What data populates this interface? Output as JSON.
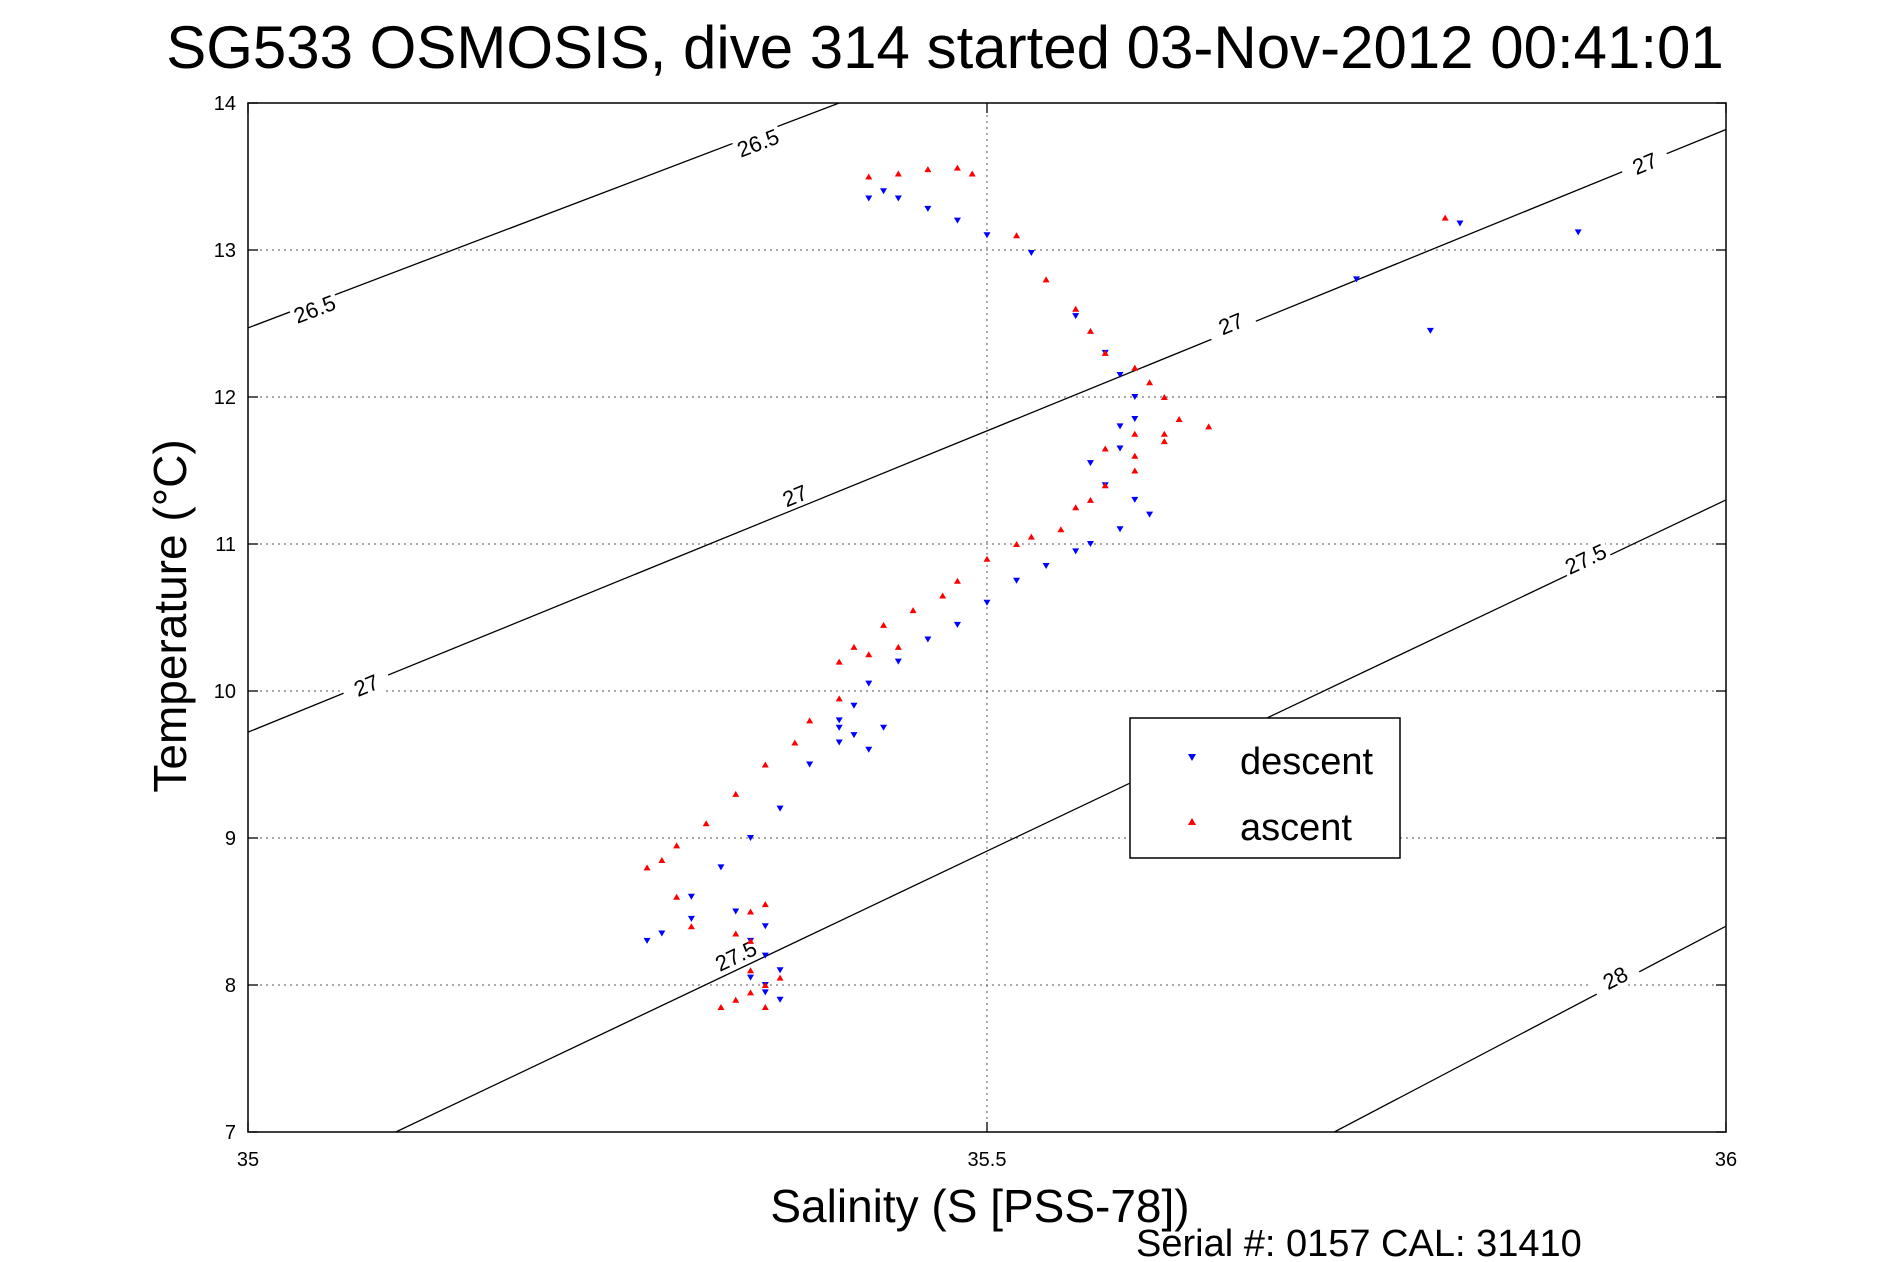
{
  "chart_data": {
    "type": "scatter",
    "title": "SG533 OSMOSIS, dive 314 started 03-Nov-2012 00:41:01",
    "xlabel": "Salinity (S [PSS-78])",
    "ylabel": "Temperature (°C)",
    "footer": "Serial #: 0157  CAL: 31410",
    "xlim": [
      35,
      36
    ],
    "ylim": [
      7,
      14
    ],
    "xticks": [
      35,
      35.5,
      36
    ],
    "xtick_labels": [
      "35",
      "35.5",
      "36"
    ],
    "yticks": [
      7,
      8,
      9,
      10,
      11,
      12,
      13,
      14
    ],
    "ytick_labels": [
      "7",
      "8",
      "9",
      "10",
      "11",
      "12",
      "13",
      "14"
    ],
    "grid": true,
    "legend_position": "center-right",
    "contours": [
      {
        "label": "26.5",
        "points": [
          [
            35,
            12.47
          ],
          [
            35.4,
            14.0
          ]
        ],
        "labels_at": [
          [
            35.045,
            12.6,
            24
          ],
          [
            35.345,
            13.73,
            24
          ]
        ]
      },
      {
        "label": "27",
        "points": [
          [
            35,
            9.72
          ],
          [
            36,
            13.82
          ]
        ],
        "labels_at": [
          [
            35.08,
            10.04,
            24
          ],
          [
            35.37,
            11.33,
            24
          ],
          [
            35.665,
            12.5,
            24
          ],
          [
            35.945,
            13.59,
            24
          ]
        ]
      },
      {
        "label": "27.5",
        "points": [
          [
            35.1,
            7.0
          ],
          [
            36,
            11.3
          ]
        ],
        "labels_at": [
          [
            35.33,
            8.2,
            24
          ],
          [
            35.905,
            10.9,
            24
          ]
        ]
      },
      {
        "label": "28",
        "points": [
          [
            35.735,
            7.0
          ],
          [
            36,
            8.4
          ]
        ],
        "labels_at": [
          [
            35.925,
            8.05,
            24
          ]
        ]
      }
    ],
    "series": [
      {
        "name": "descent",
        "color": "#0000ff",
        "marker": "triangle-down",
        "x": [
          35.42,
          35.43,
          35.44,
          35.46,
          35.48,
          35.5,
          35.53,
          35.56,
          35.58,
          35.59,
          35.6,
          35.6,
          35.59,
          35.59,
          35.57,
          35.58,
          35.6,
          35.61,
          35.59,
          35.57,
          35.56,
          35.54,
          35.52,
          35.5,
          35.48,
          35.46,
          35.44,
          35.42,
          35.41,
          35.4,
          35.4,
          35.41,
          35.42,
          35.43,
          35.4,
          35.38,
          35.36,
          35.34,
          35.32,
          35.3,
          35.28,
          35.27,
          35.3,
          35.33,
          35.35,
          35.35,
          35.34,
          35.35,
          35.36,
          35.34,
          35.35,
          35.36,
          35.82,
          35.9,
          35.75,
          35.8
        ],
        "y": [
          13.35,
          13.4,
          13.35,
          13.28,
          13.2,
          13.1,
          12.98,
          12.55,
          12.3,
          12.15,
          12.0,
          11.85,
          11.8,
          11.65,
          11.55,
          11.4,
          11.3,
          11.2,
          11.1,
          11.0,
          10.95,
          10.85,
          10.75,
          10.6,
          10.45,
          10.35,
          10.2,
          10.05,
          9.9,
          9.75,
          9.65,
          9.7,
          9.6,
          9.75,
          9.8,
          9.5,
          9.2,
          9.0,
          8.8,
          8.6,
          8.35,
          8.3,
          8.45,
          8.5,
          8.4,
          8.2,
          8.05,
          7.95,
          7.9,
          8.3,
          8.0,
          8.1,
          13.18,
          13.12,
          12.8,
          12.45
        ]
      },
      {
        "name": "ascent",
        "color": "#ff0000",
        "marker": "triangle-up",
        "x": [
          35.42,
          35.44,
          35.46,
          35.48,
          35.49,
          35.52,
          35.54,
          35.56,
          35.57,
          35.58,
          35.6,
          35.61,
          35.62,
          35.63,
          35.6,
          35.58,
          35.6,
          35.62,
          35.65,
          35.62,
          35.6,
          35.58,
          35.57,
          35.56,
          35.55,
          35.53,
          35.52,
          35.5,
          35.48,
          35.47,
          35.45,
          35.43,
          35.41,
          35.4,
          35.42,
          35.44,
          35.4,
          35.38,
          35.37,
          35.35,
          35.33,
          35.31,
          35.29,
          35.28,
          35.27,
          35.29,
          35.3,
          35.33,
          35.34,
          35.35,
          35.34,
          35.34,
          35.35,
          35.35,
          35.32,
          35.33,
          35.34,
          35.36,
          35.81
        ],
        "y": [
          13.5,
          13.52,
          13.55,
          13.56,
          13.52,
          13.1,
          12.8,
          12.6,
          12.45,
          12.3,
          12.2,
          12.1,
          12.0,
          11.85,
          11.75,
          11.65,
          11.6,
          11.75,
          11.8,
          11.7,
          11.5,
          11.4,
          11.3,
          11.25,
          11.1,
          11.05,
          11.0,
          10.9,
          10.75,
          10.65,
          10.55,
          10.45,
          10.3,
          10.2,
          10.25,
          10.3,
          9.95,
          9.8,
          9.65,
          9.5,
          9.3,
          9.1,
          8.95,
          8.85,
          8.8,
          8.6,
          8.4,
          8.35,
          8.5,
          8.55,
          8.3,
          8.1,
          8.0,
          7.85,
          7.85,
          7.9,
          7.95,
          8.05,
          13.22
        ]
      }
    ]
  }
}
